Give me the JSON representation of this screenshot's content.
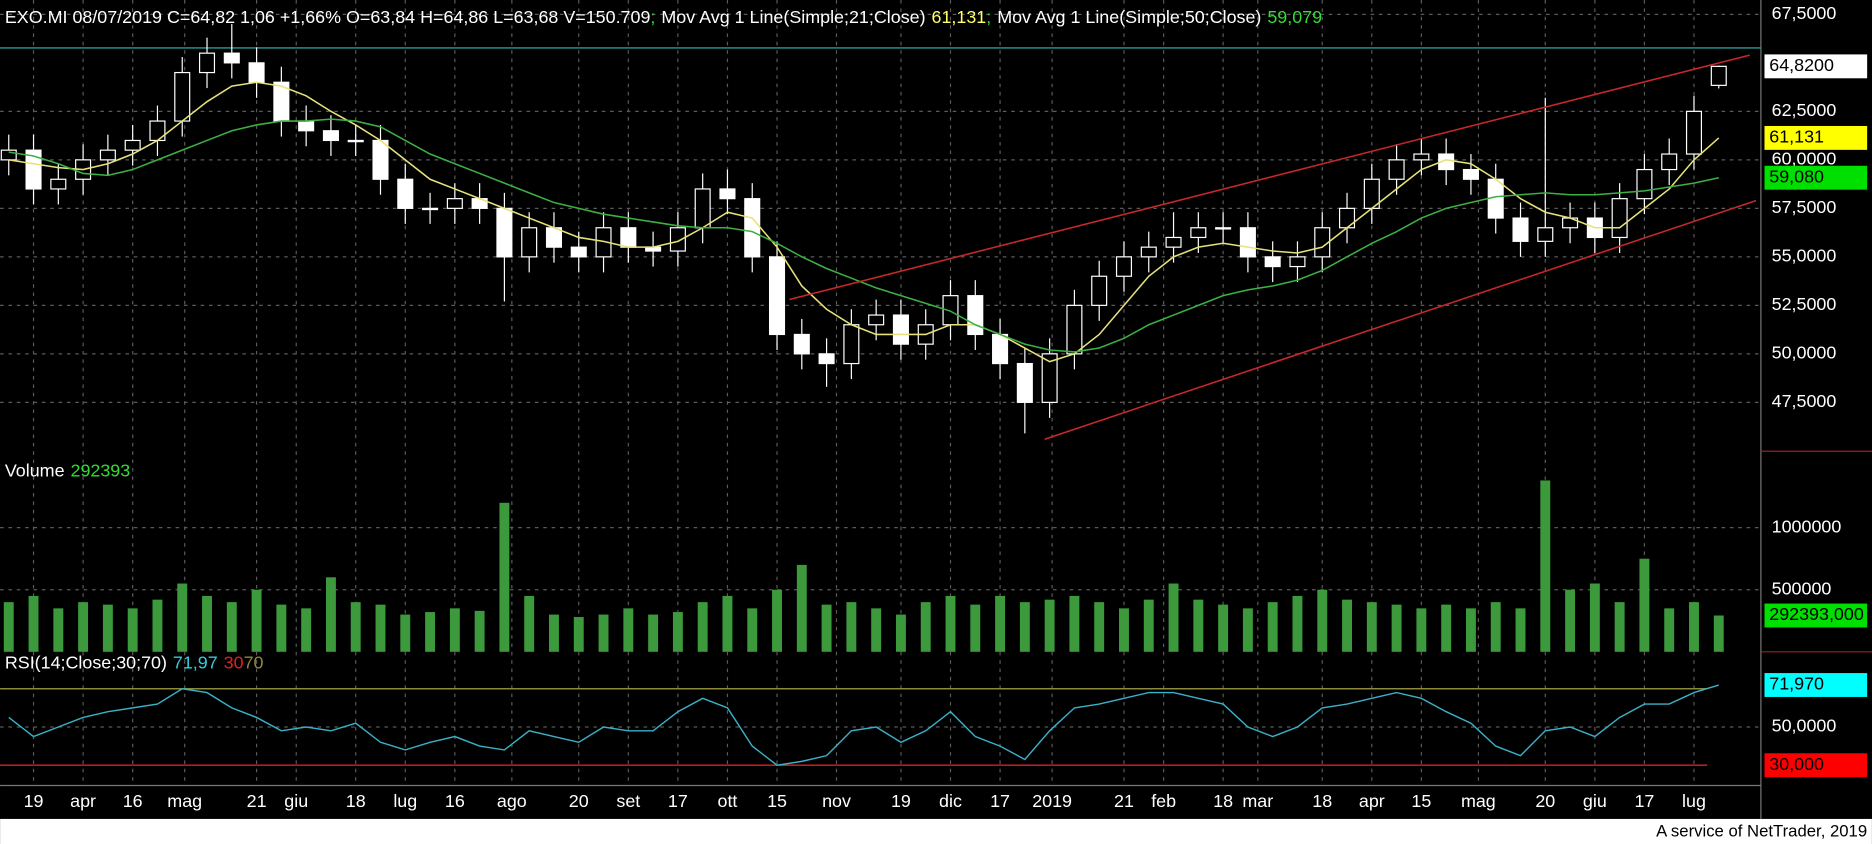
{
  "chart_data": {
    "type": "candlestick",
    "title": "EXO.MI 08/07/2019 C=64,82 1,06 +1,66% O=63,84 H=64,86 L=63,68 V=150.709",
    "separator": ";",
    "footer": "A service of NetTrader, 2019",
    "x": [
      0,
      1,
      2,
      3,
      4,
      5,
      6,
      7,
      8,
      9,
      10,
      11,
      12,
      13,
      14,
      15,
      16,
      17,
      18,
      19,
      20,
      21,
      22,
      23,
      24,
      25,
      26,
      27,
      28,
      29,
      30,
      31,
      32,
      33,
      34,
      35,
      36,
      37,
      38,
      39,
      40,
      41,
      42,
      43,
      44,
      45,
      46,
      47,
      48,
      49,
      50,
      51,
      52,
      53,
      54,
      55,
      56,
      57,
      58,
      59,
      60,
      61,
      62,
      63,
      64,
      65,
      66,
      67,
      68,
      69
    ],
    "xlim": [
      -0.35,
      70.7
    ],
    "xticks": [
      {
        "value": 1,
        "label": "19"
      },
      {
        "value": 3,
        "label": "apr"
      },
      {
        "value": 5,
        "label": "16"
      },
      {
        "value": 7.1,
        "label": "mag"
      },
      {
        "value": 10,
        "label": "21"
      },
      {
        "value": 11.6,
        "label": "giu"
      },
      {
        "value": 14,
        "label": "18"
      },
      {
        "value": 16,
        "label": "lug"
      },
      {
        "value": 18,
        "label": "16"
      },
      {
        "value": 20.3,
        "label": "ago"
      },
      {
        "value": 23,
        "label": "20"
      },
      {
        "value": 25,
        "label": "set"
      },
      {
        "value": 27,
        "label": "17"
      },
      {
        "value": 29,
        "label": "ott"
      },
      {
        "value": 31,
        "label": "15"
      },
      {
        "value": 33.4,
        "label": "nov"
      },
      {
        "value": 36,
        "label": "19"
      },
      {
        "value": 38,
        "label": "dic"
      },
      {
        "value": 40,
        "label": "17"
      },
      {
        "value": 42.1,
        "label": "2019"
      },
      {
        "value": 45,
        "label": "21"
      },
      {
        "value": 46.6,
        "label": "feb"
      },
      {
        "value": 49,
        "label": "18"
      },
      {
        "value": 50.4,
        "label": "mar"
      },
      {
        "value": 53,
        "label": "18"
      },
      {
        "value": 55,
        "label": "apr"
      },
      {
        "value": 57,
        "label": "15"
      },
      {
        "value": 59.3,
        "label": "mag"
      },
      {
        "value": 62,
        "label": "20"
      },
      {
        "value": 64,
        "label": "giu"
      },
      {
        "value": 66,
        "label": "17"
      },
      {
        "value": 68,
        "label": "lug"
      }
    ],
    "open": [
      60,
      60.5,
      58.5,
      59,
      60,
      60.5,
      61,
      62,
      64.5,
      65.5,
      65,
      64,
      62,
      61.5,
      61,
      61,
      59,
      57.5,
      57.5,
      58,
      57.5,
      55,
      56.5,
      55.5,
      55,
      56.5,
      55.5,
      55.3,
      56.5,
      58.5,
      58,
      55,
      51,
      50,
      49.5,
      51.5,
      52,
      50.5,
      51.5,
      53,
      51,
      49.5,
      47.5,
      50,
      52.5,
      54,
      55,
      55.5,
      56,
      56.5,
      56.5,
      55,
      54.5,
      55,
      56.5,
      57.5,
      59,
      60,
      60.3,
      59.5,
      59,
      57,
      55.8,
      56.5,
      57,
      56,
      58,
      59.5,
      60.3,
      63.84
    ],
    "high": [
      61.3,
      61.3,
      59.8,
      60.8,
      61.3,
      61.8,
      62.8,
      65.3,
      66.3,
      67,
      65.8,
      64.8,
      62.8,
      62.3,
      61.8,
      61.8,
      59.8,
      58.3,
      58.8,
      58.8,
      58.3,
      57.3,
      57.3,
      56.3,
      57.3,
      57.3,
      56.3,
      57.3,
      59.3,
      59.5,
      58.8,
      55.8,
      51.8,
      50.8,
      52.3,
      52.8,
      52.8,
      52.3,
      53.8,
      53.8,
      51.8,
      50.3,
      50.8,
      53.3,
      54.8,
      55.8,
      56.3,
      57.3,
      57.3,
      57.3,
      57.3,
      55.8,
      55.8,
      57.3,
      58.3,
      59.8,
      60.8,
      61.1,
      61.1,
      60.3,
      59.8,
      57.8,
      63.2,
      57.8,
      57.8,
      58.8,
      60.3,
      61.1,
      63.3,
      64.86
    ],
    "low": [
      59.2,
      57.7,
      57.7,
      58.2,
      59.2,
      59.7,
      60.2,
      61.2,
      63.7,
      64.2,
      63.2,
      61.2,
      60.7,
      60.2,
      60.2,
      58.2,
      56.7,
      56.7,
      56.7,
      56.7,
      52.7,
      54.2,
      54.7,
      54.2,
      54.2,
      54.7,
      54.5,
      54.5,
      55.7,
      57.2,
      54.2,
      50.2,
      49.2,
      48.3,
      48.7,
      50.7,
      49.7,
      49.7,
      50.7,
      50.2,
      48.7,
      45.9,
      46.7,
      49.2,
      51.7,
      53.2,
      54.2,
      54.7,
      55.2,
      55.7,
      54.2,
      53.7,
      53.7,
      54.2,
      55.7,
      56.7,
      58.2,
      59.2,
      58.7,
      58.2,
      56.2,
      55,
      55,
      55.7,
      55.2,
      55.2,
      57.2,
      58.7,
      59.5,
      63.68
    ],
    "close": [
      60.5,
      58.5,
      59,
      60,
      60.5,
      61,
      62,
      64.5,
      65.5,
      65,
      64,
      62,
      61.5,
      61,
      61,
      59,
      57.5,
      57.5,
      58,
      57.5,
      55,
      56.5,
      55.5,
      55,
      56.5,
      55.5,
      55.3,
      56.5,
      58.5,
      58,
      55,
      51,
      50,
      49.5,
      51.5,
      52,
      50.5,
      51.5,
      53,
      51,
      49.5,
      47.5,
      50,
      52.5,
      54,
      55,
      55.5,
      56,
      56.5,
      56.5,
      55,
      54.5,
      55,
      56.5,
      57.5,
      59,
      60,
      60.3,
      59.5,
      59,
      57,
      55.8,
      56.5,
      57,
      56,
      58,
      59.5,
      60.3,
      62.5,
      64.82
    ],
    "candle_color": "#ffffff",
    "ylim": [
      44.98,
      68.24
    ],
    "yticks": [
      {
        "value": 47.5,
        "label": "47,5000"
      },
      {
        "value": 50,
        "label": "50,0000"
      },
      {
        "value": 52.5,
        "label": "52,5000"
      },
      {
        "value": 55,
        "label": "55,0000"
      },
      {
        "value": 57.5,
        "label": "57,5000"
      },
      {
        "value": 60,
        "label": "60,0000"
      },
      {
        "value": 62.5,
        "label": "62,5000"
      },
      {
        "value": 67.5,
        "label": "67,5000"
      }
    ],
    "grid": true,
    "series": [
      {
        "name": "Mov Avg 1 Line(Simple;21;Close)",
        "color": "#e6e27a",
        "legend_label": "61,131",
        "legend_color": "#ffff66",
        "values": [
          60,
          59.8,
          59.6,
          59.5,
          59.8,
          60.3,
          61,
          62,
          63,
          63.8,
          64,
          63.8,
          63.3,
          62.5,
          61.8,
          61,
          60,
          59,
          58.5,
          58,
          57.5,
          57,
          56.5,
          56,
          55.8,
          55.5,
          55.5,
          55.8,
          56.5,
          57.3,
          57,
          55.5,
          53.5,
          52.3,
          51.5,
          51,
          51,
          51,
          51.5,
          51.5,
          51,
          50.3,
          49.6,
          50,
          51,
          52.5,
          54,
          55,
          55.5,
          55.7,
          55.5,
          55.3,
          55.2,
          55.5,
          56.5,
          57.5,
          58.5,
          59.5,
          60,
          59.8,
          59,
          58,
          57.3,
          57,
          56.5,
          56.5,
          57.5,
          58.5,
          60,
          61.131
        ]
      },
      {
        "name": "Mov Avg 1 Line(Simple;50;Close)",
        "color": "#3cb043",
        "legend_label": "59,079",
        "legend_color": "#33dd33",
        "values": [
          60.4,
          60.2,
          59.8,
          59.3,
          59.2,
          59.5,
          60,
          60.5,
          61,
          61.5,
          61.8,
          62,
          62,
          62.1,
          62,
          61.7,
          61,
          60.3,
          59.8,
          59.3,
          58.8,
          58.3,
          57.8,
          57.5,
          57.2,
          57,
          56.8,
          56.6,
          56.5,
          56.5,
          56.3,
          55.7,
          55,
          54.4,
          53.9,
          53.4,
          53,
          52.6,
          52.2,
          51.5,
          51,
          50.5,
          50.2,
          50.1,
          50.3,
          50.8,
          51.5,
          52,
          52.5,
          53,
          53.3,
          53.5,
          53.8,
          54.3,
          55,
          55.7,
          56.3,
          57,
          57.5,
          57.8,
          58.1,
          58.2,
          58.3,
          58.2,
          58.2,
          58.3,
          58.4,
          58.6,
          58.8,
          59.079
        ]
      }
    ],
    "trendline_color": "#c8282a",
    "trendlines": [
      {
        "x": [
          31.5,
          70.25
        ],
        "y": [
          52.8,
          65.4
        ]
      },
      {
        "x": [
          41.8,
          70.5
        ],
        "y": [
          45.6,
          57.9
        ]
      }
    ],
    "hline": {
      "value": 65.77,
      "color": "#2a9a9a"
    },
    "last_labels": [
      {
        "value": 64.82,
        "label": "64,8200",
        "color": "#ffffff"
      },
      {
        "value": 61.131,
        "label": "61,131",
        "color": "#ffff00"
      },
      {
        "value": 59.08,
        "label": "59,080",
        "color": "#00e000"
      }
    ],
    "volume": {
      "name": "Volume",
      "color": "#3c9a3c",
      "legend_label": "292393",
      "legend_color": "#33dd33",
      "values": [
        400000,
        450000,
        350000,
        400000,
        380000,
        350000,
        420000,
        550000,
        450000,
        400000,
        500000,
        380000,
        350000,
        600000,
        400000,
        380000,
        300000,
        320000,
        350000,
        330000,
        1200000,
        450000,
        300000,
        280000,
        300000,
        350000,
        300000,
        320000,
        400000,
        450000,
        350000,
        500000,
        700000,
        380000,
        400000,
        350000,
        300000,
        400000,
        450000,
        380000,
        450000,
        400000,
        420000,
        450000,
        400000,
        350000,
        420000,
        550000,
        420000,
        380000,
        350000,
        400000,
        450000,
        500000,
        420000,
        400000,
        380000,
        350000,
        380000,
        350000,
        400000,
        350000,
        1380000,
        500000,
        550000,
        400000,
        750000,
        350000,
        400000,
        292393
      ],
      "ylim": [
        0,
        1596000
      ],
      "yticks": [
        500000,
        1000000
      ],
      "last_labels": [
        {
          "value": 292393,
          "label": "292393,000",
          "color": "#00e000"
        }
      ]
    },
    "rsi": {
      "name": "RSI(14;Close;30;70)",
      "color": "#3ab0c8",
      "legend_label": "71,97",
      "legend_color": "#33ccdd",
      "values": [
        55,
        45,
        50,
        55,
        58,
        60,
        62,
        70,
        68,
        60,
        55,
        48,
        50,
        48,
        52,
        42,
        38,
        42,
        45,
        40,
        38,
        48,
        45,
        42,
        50,
        48,
        48,
        58,
        65,
        60,
        40,
        30,
        32,
        35,
        48,
        50,
        42,
        48,
        58,
        45,
        40,
        33,
        48,
        60,
        62,
        65,
        68,
        68,
        65,
        62,
        50,
        45,
        50,
        60,
        62,
        65,
        68,
        65,
        58,
        52,
        40,
        35,
        48,
        50,
        45,
        55,
        62,
        62,
        68,
        71.97
      ],
      "ylim": [
        20,
        88.1
      ],
      "yticks": [
        {
          "value": 50,
          "label": "50,0000"
        }
      ],
      "bands": [
        {
          "value": 30,
          "label": "30",
          "color": "#e02020"
        },
        {
          "value": 70,
          "label": "70",
          "color": "#8a8a3a"
        }
      ],
      "last_labels": [
        {
          "value": 71.97,
          "label": "71,970",
          "color": "#00ffff"
        },
        {
          "value": 30,
          "label": "30,000",
          "color": "#ff0000"
        }
      ]
    }
  }
}
